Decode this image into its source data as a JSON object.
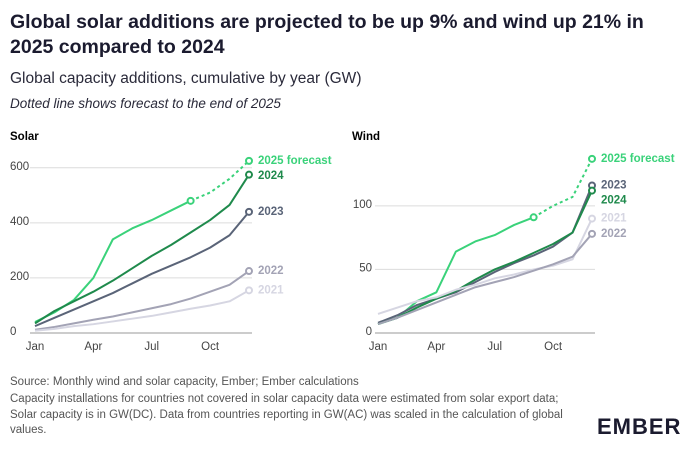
{
  "header": {
    "title": "Global solar additions are projected to be up 9% and wind up 21% in 2025 compared to 2024",
    "subtitle": "Global capacity additions, cumulative by year (GW)",
    "note": "Dotted line shows forecast to the end of 2025"
  },
  "chart_data": [
    {
      "type": "line",
      "title": "Solar",
      "categories": [
        "Jan",
        null,
        null,
        "Apr",
        null,
        null,
        "Jul",
        null,
        null,
        "Oct",
        null,
        null
      ],
      "ylim": [
        0,
        650
      ],
      "yticks": [
        0,
        200,
        400,
        600
      ],
      "grid": true,
      "series": [
        {
          "color": "#3ad27a",
          "values": [
            40,
            75,
            120,
            200,
            340,
            380,
            410,
            445,
            480,
            null,
            null,
            null
          ]
        },
        {
          "name": "2025 forecast",
          "color": "#3ad27a",
          "dashed": true,
          "values": [
            null,
            null,
            null,
            null,
            null,
            null,
            null,
            null,
            480,
            510,
            560,
            625
          ]
        },
        {
          "name": "2024",
          "color": "#1f8a4c",
          "values": [
            35,
            80,
            115,
            150,
            190,
            235,
            280,
            320,
            365,
            410,
            465,
            575
          ]
        },
        {
          "name": "2023",
          "color": "#5a6478",
          "values": [
            25,
            55,
            85,
            115,
            145,
            180,
            215,
            245,
            275,
            310,
            355,
            440
          ]
        },
        {
          "name": "2022",
          "color": "#a3a3b5",
          "values": [
            12,
            22,
            35,
            48,
            60,
            75,
            90,
            105,
            125,
            150,
            175,
            225
          ]
        },
        {
          "name": "2021",
          "color": "#d6d6e2",
          "values": [
            8,
            15,
            25,
            32,
            42,
            52,
            62,
            75,
            88,
            100,
            115,
            155
          ]
        }
      ]
    },
    {
      "type": "line",
      "title": "Wind",
      "categories": [
        "Jan",
        null,
        null,
        "Apr",
        null,
        null,
        "Jul",
        null,
        null,
        "Oct",
        null,
        null
      ],
      "ylim": [
        0,
        140
      ],
      "yticks": [
        0,
        50,
        100
      ],
      "grid": true,
      "series": [
        {
          "color": "#3ad27a",
          "values": [
            7,
            12,
            25,
            32,
            64,
            72,
            77,
            85,
            91,
            null,
            null,
            null
          ]
        },
        {
          "name": "2025 forecast",
          "color": "#3ad27a",
          "dashed": true,
          "values": [
            null,
            null,
            null,
            null,
            null,
            null,
            null,
            null,
            91,
            100,
            107,
            137
          ]
        },
        {
          "name": "2023",
          "color": "#5a6478",
          "values": [
            8,
            14,
            22,
            27,
            32,
            40,
            48,
            55,
            61,
            68,
            79,
            116
          ]
        },
        {
          "name": "2024",
          "color": "#1f8a4c",
          "values": [
            7,
            12,
            20,
            27,
            33,
            42,
            50,
            56,
            63,
            70,
            79,
            112
          ]
        },
        {
          "name": "2021",
          "color": "#d6d6e2",
          "values": [
            15,
            20,
            25,
            28,
            34,
            38,
            43,
            46,
            50,
            53,
            58,
            90
          ]
        },
        {
          "name": "2022",
          "color": "#a3a3b5",
          "values": [
            7,
            12,
            18,
            24,
            30,
            36,
            40,
            44,
            49,
            54,
            60,
            78
          ]
        }
      ]
    }
  ],
  "footer": {
    "source": "Source: Monthly wind and solar capacity, Ember; Ember calculations",
    "note": "Capacity installations for countries not covered in solar capacity data were estimated from solar export data; Solar capacity is in GW(DC). Data from countries reporting in GW(AC) was scaled in the calculation of global values.",
    "logo": "EMBER"
  }
}
